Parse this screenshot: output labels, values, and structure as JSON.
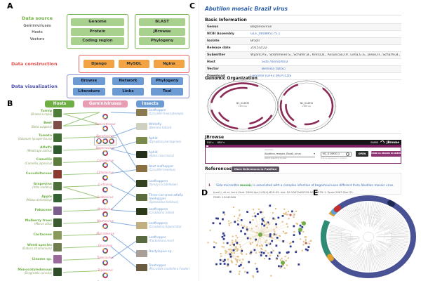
{
  "figure": {
    "panel_labels": {
      "a": "A",
      "b": "B",
      "c": "C",
      "d": "D",
      "e": "E"
    }
  },
  "panel_a": {
    "source_label": "Data source",
    "source_items": [
      "Geminiviruses",
      "Hosts",
      "Vectors"
    ],
    "box_genome": [
      "Genome",
      "Protein",
      "Coding region"
    ],
    "box_tools": [
      "BLAST",
      "JBrowse",
      "Phylogeny"
    ],
    "construction_label": "Data construction",
    "construction_items": [
      "Django",
      "MySQL",
      "Nginx"
    ],
    "visualization_label": "Data visualization",
    "visualization_items": [
      "Browse",
      "Network",
      "Phylogeny",
      "Literature",
      "Links",
      "Tool"
    ],
    "colors": {
      "green": "#6fae44",
      "green_fill": "#a9d18e",
      "orange_fill": "#f2a444",
      "red": "#e8504f",
      "blue_fill": "#6b9bd2",
      "violet": "#4b4fae"
    }
  },
  "panel_b": {
    "headers": [
      {
        "label": "Hosts",
        "color": "#6fae44"
      },
      {
        "label": "Geminiviruses",
        "color": "#e79cb1"
      },
      {
        "label": "Insects",
        "color": "#6b9bd2"
      }
    ],
    "hosts": [
      {
        "name": "Turnip",
        "latin": "(Brassica rapa)"
      },
      {
        "name": "Beet",
        "latin": "(Beta vulgaris)"
      },
      {
        "name": "Tomato",
        "latin": "(Solanum lycopersicum)"
      },
      {
        "name": "Alfalfa",
        "latin": "(Medicago sativa)"
      },
      {
        "name": "Camellia",
        "latin": "(Camellia japonica)"
      },
      {
        "name": "Cucurbitaceae",
        "latin": ""
      },
      {
        "name": "Grapevine",
        "latin": "(Vitis vinifera)"
      },
      {
        "name": "Apple",
        "latin": "(Malus domestica)"
      },
      {
        "name": "Fabaceae",
        "latin": ""
      },
      {
        "name": "Mulberry trees",
        "latin": "(Morus alba)"
      },
      {
        "name": "Cactaceae",
        "latin": ""
      },
      {
        "name": "Weed species",
        "latin": "(Datura stramonium)"
      },
      {
        "name": "Cleome sp.",
        "latin": ""
      },
      {
        "name": "Monocotyledonous",
        "latin": "(Eragrostis curvula)"
      }
    ],
    "viruses": [
      "Turncurtovirus",
      "Becurtovirus",
      "Begomovirus",
      "Capulavirus",
      "Citlodavirus",
      "Curtovirus",
      "Grablovirus",
      "Maldovirus",
      "Mastrevirus",
      "Mulcrilevirus",
      "Opunvirus",
      "Topocuvirus",
      "Topilevirus",
      "Eragrovirus"
    ],
    "insects": [
      {
        "name": "Leafhopper",
        "latin": "(Circulifer haematoceps)"
      },
      {
        "name": "Whitefly",
        "latin": "(Bemisia tabaci)"
      },
      {
        "name": "Aphid",
        "latin": "(Dysaphis plantaginea)"
      },
      {
        "name": "Aphid",
        "latin": "(Aphis craccivora)"
      },
      {
        "name": "Beet leafhopper",
        "latin": "(Circulifer tenellus)"
      },
      {
        "name": "Leafhoppers",
        "latin": "(family Cicadellidae)"
      },
      {
        "name": "Three-cornered alfalfa treehopper",
        "latin": "(Spissistilus festinus)"
      },
      {
        "name": "Leafhoppers",
        "latin": "(Cicadulina mbila)"
      },
      {
        "name": "Leafhoppers",
        "latin": "(Cicadulina bipunctata)"
      },
      {
        "name": "Leafhopper",
        "latin": "(Tautoneura mori)"
      },
      {
        "name": "Dactylopius sp.",
        "latin": ""
      },
      {
        "name": "Treehopper",
        "latin": "(Micrutalis malleifera Fowler)"
      }
    ],
    "host_virus_links": [
      [
        0,
        0
      ],
      [
        0,
        1
      ],
      [
        1,
        0
      ],
      [
        1,
        1
      ],
      [
        2,
        2
      ],
      [
        3,
        3
      ],
      [
        4,
        4
      ],
      [
        5,
        5
      ],
      [
        6,
        6
      ],
      [
        6,
        7
      ],
      [
        7,
        7
      ],
      [
        8,
        8
      ],
      [
        9,
        9
      ],
      [
        10,
        10
      ],
      [
        11,
        11
      ],
      [
        12,
        12
      ],
      [
        13,
        13
      ]
    ],
    "virus_insect_links": [
      [
        0,
        0
      ],
      [
        1,
        4
      ],
      [
        2,
        1
      ],
      [
        3,
        2
      ],
      [
        3,
        3
      ],
      [
        4,
        5
      ],
      [
        5,
        4
      ],
      [
        6,
        6
      ],
      [
        8,
        7
      ],
      [
        8,
        5
      ],
      [
        9,
        8
      ],
      [
        10,
        10
      ],
      [
        11,
        11
      ],
      [
        12,
        9
      ]
    ],
    "line_colors": {
      "host": "#9dc97e",
      "insect": "#85aede"
    }
  },
  "panel_c": {
    "title": "Abutilon mosaic Brazil virus",
    "sections": {
      "basic": "Basic Information",
      "genomic": "Genomic Organization",
      "jbrowse": "JBrowse",
      "references": "References"
    },
    "info_rows": [
      {
        "label": "Genus",
        "value": "Begomovirus",
        "link": false,
        "italic": true,
        "indent": false
      },
      {
        "label": "NCBI Assembly",
        "value": "GCF_000895175.1",
        "link": true,
        "italic": false,
        "indent": false
      },
      {
        "label": "Isolate",
        "value": "Brazil",
        "link": false,
        "italic": false,
        "indent": false
      },
      {
        "label": "Release date",
        "value": "2015/2/22",
        "link": false,
        "italic": false,
        "indent": false
      },
      {
        "label": "Submitter",
        "value": "Wyant,P.S., Strohmeier,S., Schafer,B., Krenz,B., Assuncao,I.P., Lima,G.S., Jeske,H., Scharfe,B., Lima,G.S.A.",
        "link": false,
        "italic": false,
        "indent": false
      },
      {
        "label": "Host",
        "value": "Sida rhombifolia",
        "link": true,
        "italic": true,
        "indent": true
      },
      {
        "label": "Vector",
        "value": "Bemisia tabaci",
        "link": true,
        "italic": true,
        "indent": true
      },
      {
        "label": "Download",
        "value": "Genome |GFF3 |PEP |CDS",
        "link": true,
        "italic": false,
        "indent": false
      }
    ],
    "genome_maps": [
      {
        "accession": "NC_014930",
        "length": "2632 bp"
      },
      {
        "accession": "NC_014931",
        "length": "2665 bp"
      }
    ],
    "jbrowse": {
      "file_menu": "FILE ▾",
      "help_menu": "HELP ▾",
      "share": "SHARE",
      "logo": "JBrowse",
      "assembly_label": "Assembly",
      "assembly_value": "Abutilon_mosaic_Brazil_virus",
      "assembly_helper": "Select assembly to view",
      "location_value": "NC_014930.1",
      "location_helper": "Enter a sequence or location",
      "open_btn": "OPEN",
      "show_all_btn": "SHOW ALL REGIONS IN ASSEMBLY"
    },
    "pubmed_btn": "More References in PubMed",
    "reference": {
      "index": "1",
      "title_pre": "Sida micrantha ",
      "title_highlight": "mosaic",
      "title_post": " is associated with a complex infection of begomoviruses different from Abutilon mosaic virus",
      "citation": "Jovel J, et al. Arch Virol. 2004 Apr;149(4):829-45. doi: 10.1007/s00705-003-0235-1. Epub 2003 Dec 22.",
      "pmid": "PMID: 15045560"
    },
    "map_arc_color": "#8b2a56"
  },
  "panel_d": {
    "colors": {
      "virus_node": "#313c8f",
      "host_node": "#e2c088",
      "hub_node": "#70ad47",
      "edge": "#e7d9b6",
      "alt_node": "#c4574e",
      "alt_edge": "#e7c0b8"
    }
  },
  "panel_e": {
    "ring_color": "#4a5296",
    "tick_color": "#1c2a52",
    "segments": [
      {
        "color": "#2e8b74",
        "from": 152,
        "to": 203
      },
      {
        "color": "#e0a030",
        "from": 146,
        "to": 150
      },
      {
        "color": "#e0a030",
        "from": 215,
        "to": 219
      },
      {
        "color": "#5aa0d0",
        "from": 220,
        "to": 224
      },
      {
        "color": "#c03030",
        "from": 225,
        "to": 228
      },
      {
        "color": "#1c2a52",
        "from": 299,
        "to": 303
      }
    ],
    "gap": {
      "from": 204,
      "to": 214
    },
    "tree_color": "#c8c8c8"
  }
}
